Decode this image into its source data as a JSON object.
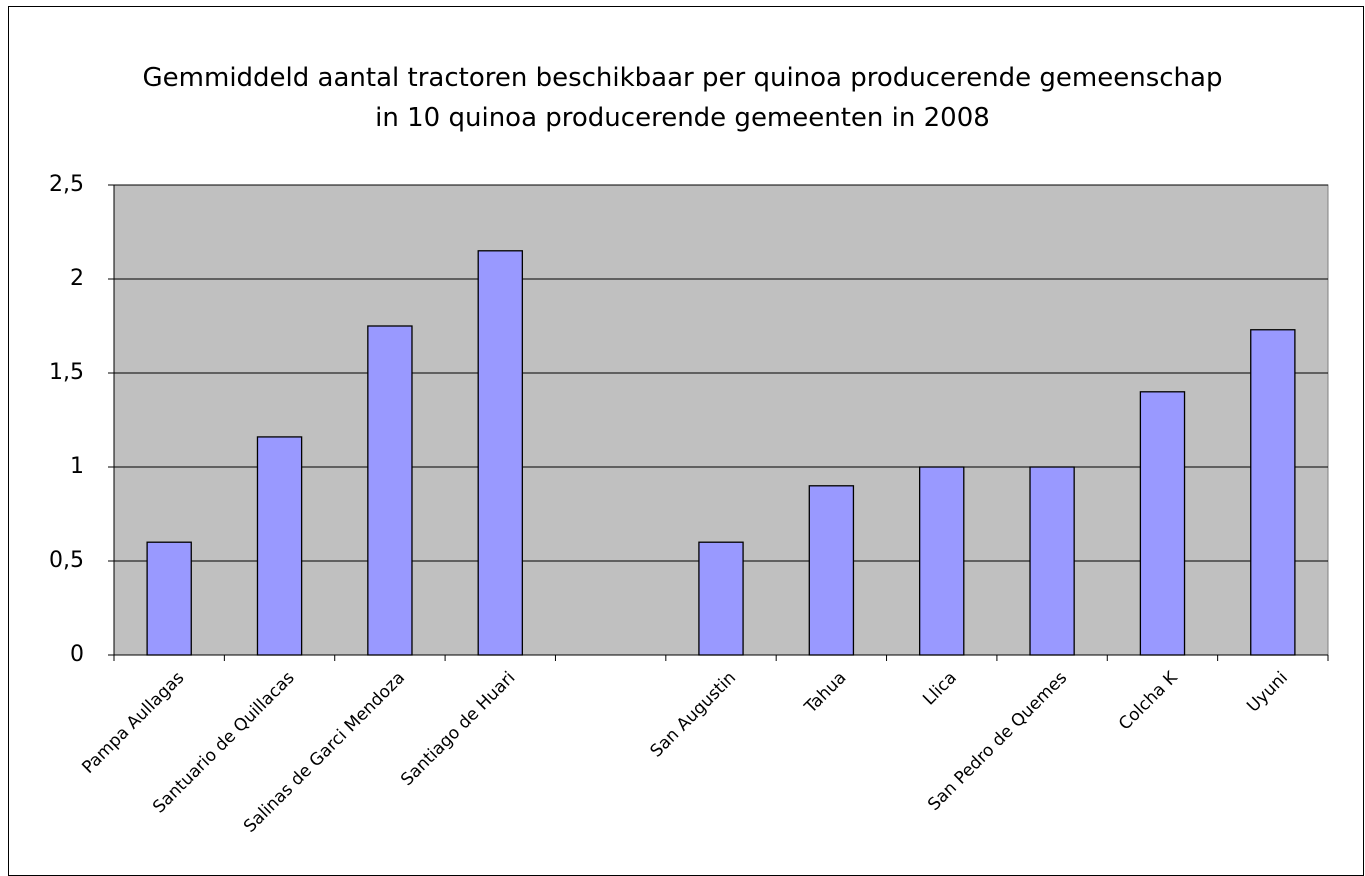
{
  "chart_data": {
    "type": "bar",
    "title": "Gemmiddeld aantal tractoren beschikbaar per quinoa producerende gemeenschap\nin 10 quinoa producerende gemeenten in 2008",
    "categories": [
      "Pampa Aullagas",
      "Santuario de Quillacas",
      "Salinas de Garci Mendoza",
      "Santiago de Huari",
      null,
      "San Augustin",
      "Tahua",
      "Llica",
      "San Pedro de Quemes",
      "Colcha K",
      "Uyuni"
    ],
    "values": [
      0.6,
      1.16,
      1.75,
      2.15,
      null,
      0.6,
      0.9,
      1.0,
      1.0,
      1.4,
      1.73
    ],
    "color": "#9999ff",
    "ylim": [
      0,
      2.5
    ],
    "yticks": [
      0,
      {
        "value": 0.5,
        "label": "0,5"
      },
      1,
      {
        "value": 1.5,
        "label": "1,5"
      },
      2,
      {
        "value": 2.5,
        "label": "2,5"
      }
    ],
    "grid": true
  }
}
